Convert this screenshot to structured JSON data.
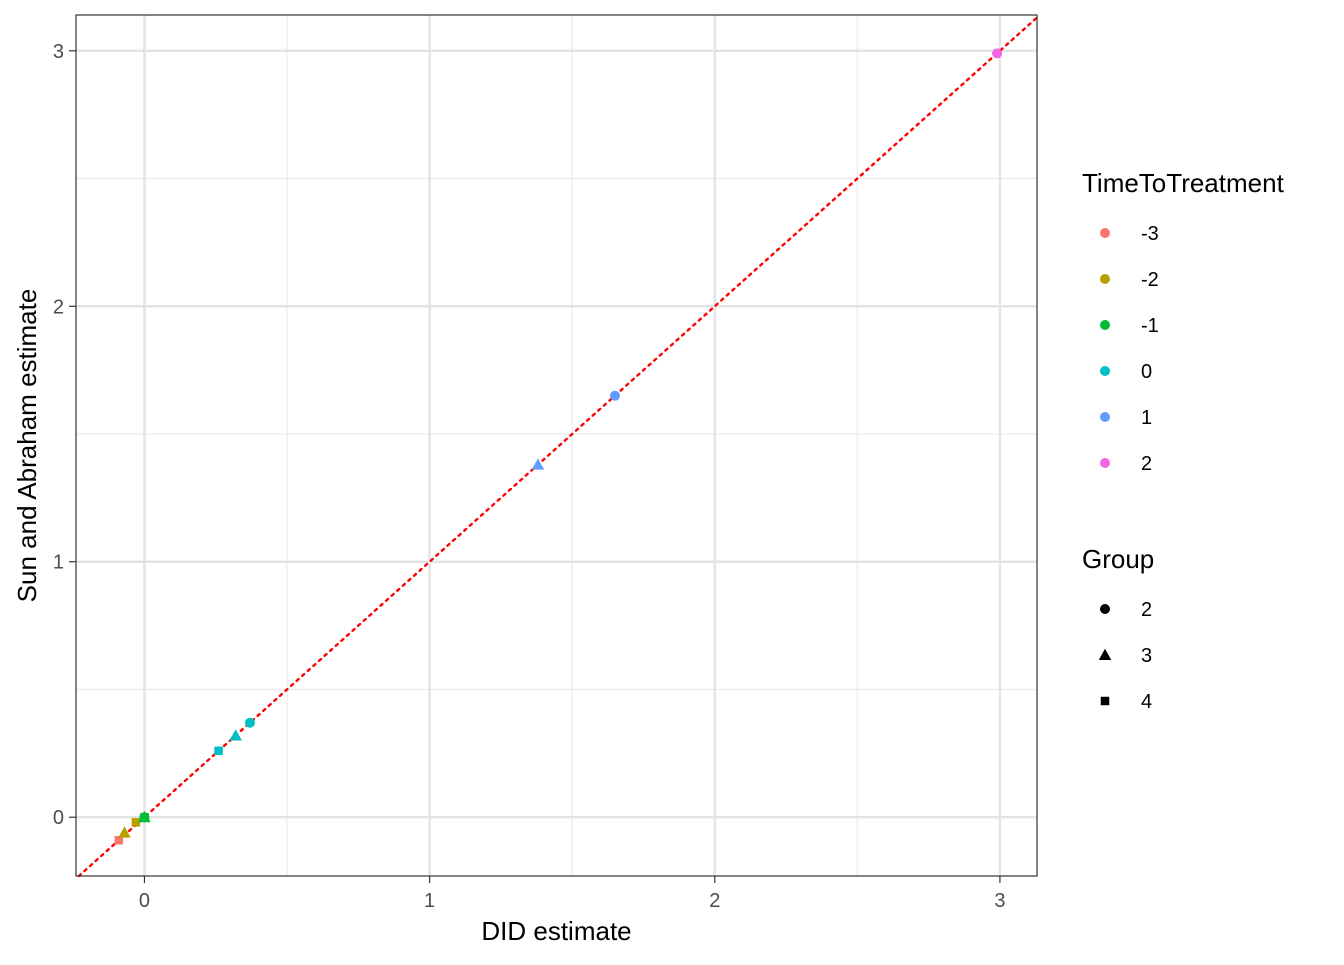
{
  "chart_data": {
    "type": "scatter",
    "xlabel": "DID estimate",
    "ylabel": "Sun and Abraham estimate",
    "xlim": [
      -0.24,
      3.13
    ],
    "ylim": [
      -0.23,
      3.14
    ],
    "x_ticks": [
      0,
      1,
      2,
      3
    ],
    "y_ticks": [
      0,
      1,
      2,
      3
    ],
    "x_tick_labels": [
      "0",
      "1",
      "2",
      "3"
    ],
    "y_tick_labels": [
      "0",
      "1",
      "2",
      "3"
    ],
    "grid": true,
    "reference_line": {
      "slope": 1,
      "intercept": 0,
      "style": "dotted",
      "color": "#ff0000"
    },
    "legends": {
      "color": {
        "title": "TimeToTreatment",
        "entries": [
          {
            "label": "-3",
            "color": "#F8766D"
          },
          {
            "label": "-2",
            "color": "#B79F00"
          },
          {
            "label": "-1",
            "color": "#00BA38"
          },
          {
            "label": "0",
            "color": "#00BFC4"
          },
          {
            "label": "1",
            "color": "#619CFF"
          },
          {
            "label": "2",
            "color": "#F564E3"
          }
        ]
      },
      "shape": {
        "title": "Group",
        "entries": [
          {
            "label": "2",
            "shape": "circle"
          },
          {
            "label": "3",
            "shape": "triangle"
          },
          {
            "label": "4",
            "shape": "square"
          }
        ]
      },
      "placement": "right"
    },
    "points": [
      {
        "x": -0.09,
        "y": -0.09,
        "time": "-3",
        "group": "4"
      },
      {
        "x": -0.07,
        "y": -0.06,
        "time": "-2",
        "group": "3"
      },
      {
        "x": -0.03,
        "y": -0.02,
        "time": "-2",
        "group": "4"
      },
      {
        "x": 0.0,
        "y": 0.0,
        "time": "-1",
        "group": "2"
      },
      {
        "x": 0.0,
        "y": 0.0,
        "time": "-1",
        "group": "3"
      },
      {
        "x": 0.0,
        "y": 0.0,
        "time": "-1",
        "group": "4"
      },
      {
        "x": 0.26,
        "y": 0.26,
        "time": "0",
        "group": "4"
      },
      {
        "x": 0.32,
        "y": 0.32,
        "time": "0",
        "group": "3"
      },
      {
        "x": 0.37,
        "y": 0.37,
        "time": "0",
        "group": "2"
      },
      {
        "x": 1.38,
        "y": 1.38,
        "time": "1",
        "group": "3"
      },
      {
        "x": 1.65,
        "y": 1.65,
        "time": "1",
        "group": "2"
      },
      {
        "x": 2.99,
        "y": 2.99,
        "time": "2",
        "group": "2"
      }
    ]
  }
}
